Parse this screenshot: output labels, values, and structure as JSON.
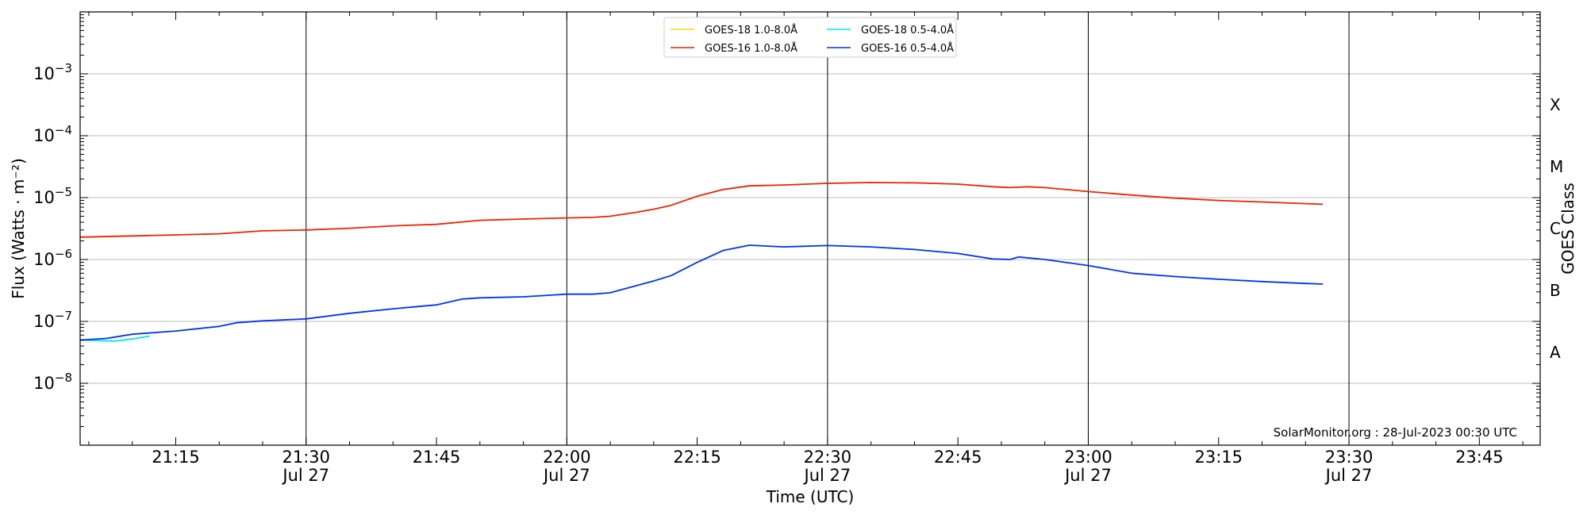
{
  "chart_data": {
    "type": "line",
    "xlabel": "Time (UTC)",
    "ylabel": "Flux (Watts · m⁻²)",
    "right_label": "GOES Class",
    "footer": "SolarMonitor.org : 28-Jul-2023 00:30 UTC",
    "x_unit": "minutes after 21:00 UTC, Jul 27 2023",
    "xlim": [
      "21:04",
      "23:52"
    ],
    "ylim": [
      1e-09,
      0.01
    ],
    "yscale": "log",
    "grid": "horizontal at decades, vertical lines at half hours",
    "legend_position": "top-center",
    "x_ticks": [
      {
        "time": "21:15",
        "label": "21:15",
        "sub": ""
      },
      {
        "time": "21:30",
        "label": "21:30",
        "sub": "Jul 27"
      },
      {
        "time": "21:45",
        "label": "21:45",
        "sub": ""
      },
      {
        "time": "22:00",
        "label": "22:00",
        "sub": "Jul 27"
      },
      {
        "time": "22:15",
        "label": "22:15",
        "sub": ""
      },
      {
        "time": "22:30",
        "label": "22:30",
        "sub": "Jul 27"
      },
      {
        "time": "22:45",
        "label": "22:45",
        "sub": ""
      },
      {
        "time": "23:00",
        "label": "23:00",
        "sub": "Jul 27"
      },
      {
        "time": "23:15",
        "label": "23:15",
        "sub": ""
      },
      {
        "time": "23:30",
        "label": "23:30",
        "sub": "Jul 27"
      },
      {
        "time": "23:45",
        "label": "23:45",
        "sub": ""
      }
    ],
    "y_ticks": [
      {
        "value": 0.001,
        "exp": "−3"
      },
      {
        "value": 0.0001,
        "exp": "−4"
      },
      {
        "value": 1e-05,
        "exp": "−5"
      },
      {
        "value": 1e-06,
        "exp": "−6"
      },
      {
        "value": 1e-07,
        "exp": "−7"
      },
      {
        "value": 1e-08,
        "exp": "−8"
      }
    ],
    "goes_classes": [
      {
        "label": "X",
        "value": 0.000316
      },
      {
        "label": "M",
        "value": 3.16e-05
      },
      {
        "label": "C",
        "value": 3.16e-06
      },
      {
        "label": "B",
        "value": 3.16e-07
      },
      {
        "label": "A",
        "value": 3.16e-08
      }
    ],
    "series": [
      {
        "name": "GOES-18 1.0-8.0Å",
        "color": "#ffd700",
        "points": []
      },
      {
        "name": "GOES-18 0.5-4.0Å",
        "color": "#00e5ee",
        "points": [
          [
            "21:04",
            5e-08
          ],
          [
            "21:06",
            4.9e-08
          ],
          [
            "21:08",
            4.8e-08
          ],
          [
            "21:10",
            5.2e-08
          ],
          [
            "21:12",
            5.8e-08
          ]
        ]
      },
      {
        "name": "GOES-16 1.0-8.0Å",
        "color": "#ee2200",
        "points": [
          [
            "21:04",
            2.3e-06
          ],
          [
            "21:10",
            2.4e-06
          ],
          [
            "21:15",
            2.5e-06
          ],
          [
            "21:20",
            2.6e-06
          ],
          [
            "21:25",
            2.9e-06
          ],
          [
            "21:30",
            3e-06
          ],
          [
            "21:35",
            3.2e-06
          ],
          [
            "21:40",
            3.5e-06
          ],
          [
            "21:45",
            3.7e-06
          ],
          [
            "21:50",
            4.3e-06
          ],
          [
            "21:55",
            4.5e-06
          ],
          [
            "22:00",
            4.7e-06
          ],
          [
            "22:03",
            4.8e-06
          ],
          [
            "22:05",
            5e-06
          ],
          [
            "22:08",
            5.8e-06
          ],
          [
            "22:10",
            6.5e-06
          ],
          [
            "22:12",
            7.5e-06
          ],
          [
            "22:15",
            1.05e-05
          ],
          [
            "22:18",
            1.35e-05
          ],
          [
            "22:21",
            1.55e-05
          ],
          [
            "22:25",
            1.6e-05
          ],
          [
            "22:30",
            1.7e-05
          ],
          [
            "22:35",
            1.75e-05
          ],
          [
            "22:40",
            1.73e-05
          ],
          [
            "22:45",
            1.65e-05
          ],
          [
            "22:49",
            1.5e-05
          ],
          [
            "22:51",
            1.45e-05
          ],
          [
            "22:53",
            1.5e-05
          ],
          [
            "22:55",
            1.45e-05
          ],
          [
            "23:00",
            1.25e-05
          ],
          [
            "23:05",
            1.1e-05
          ],
          [
            "23:10",
            9.8e-06
          ],
          [
            "23:15",
            9e-06
          ],
          [
            "23:20",
            8.5e-06
          ],
          [
            "23:25",
            8e-06
          ],
          [
            "23:27",
            7.8e-06
          ]
        ]
      },
      {
        "name": "GOES-16 0.5-4.0Å",
        "color": "#0033ee",
        "points": [
          [
            "21:04",
            5e-08
          ],
          [
            "21:07",
            5.3e-08
          ],
          [
            "21:10",
            6.2e-08
          ],
          [
            "21:15",
            7e-08
          ],
          [
            "21:20",
            8.3e-08
          ],
          [
            "21:22",
            9.5e-08
          ],
          [
            "21:25",
            1.02e-07
          ],
          [
            "21:30",
            1.1e-07
          ],
          [
            "21:35",
            1.35e-07
          ],
          [
            "21:40",
            1.6e-07
          ],
          [
            "21:45",
            1.85e-07
          ],
          [
            "21:48",
            2.3e-07
          ],
          [
            "21:50",
            2.4e-07
          ],
          [
            "21:55",
            2.5e-07
          ],
          [
            "21:58",
            2.65e-07
          ],
          [
            "22:00",
            2.75e-07
          ],
          [
            "22:03",
            2.75e-07
          ],
          [
            "22:05",
            2.9e-07
          ],
          [
            "22:10",
            4.5e-07
          ],
          [
            "22:12",
            5.5e-07
          ],
          [
            "22:15",
            9e-07
          ],
          [
            "22:18",
            1.4e-06
          ],
          [
            "22:21",
            1.7e-06
          ],
          [
            "22:25",
            1.6e-06
          ],
          [
            "22:30",
            1.68e-06
          ],
          [
            "22:35",
            1.6e-06
          ],
          [
            "22:40",
            1.45e-06
          ],
          [
            "22:45",
            1.25e-06
          ],
          [
            "22:49",
            1.02e-06
          ],
          [
            "22:51",
            1e-06
          ],
          [
            "22:52",
            1.1e-06
          ],
          [
            "22:55",
            1e-06
          ],
          [
            "23:00",
            8e-07
          ],
          [
            "23:05",
            6e-07
          ],
          [
            "23:10",
            5.3e-07
          ],
          [
            "23:15",
            4.8e-07
          ],
          [
            "23:20",
            4.4e-07
          ],
          [
            "23:25",
            4.1e-07
          ],
          [
            "23:27",
            4e-07
          ]
        ]
      }
    ]
  }
}
